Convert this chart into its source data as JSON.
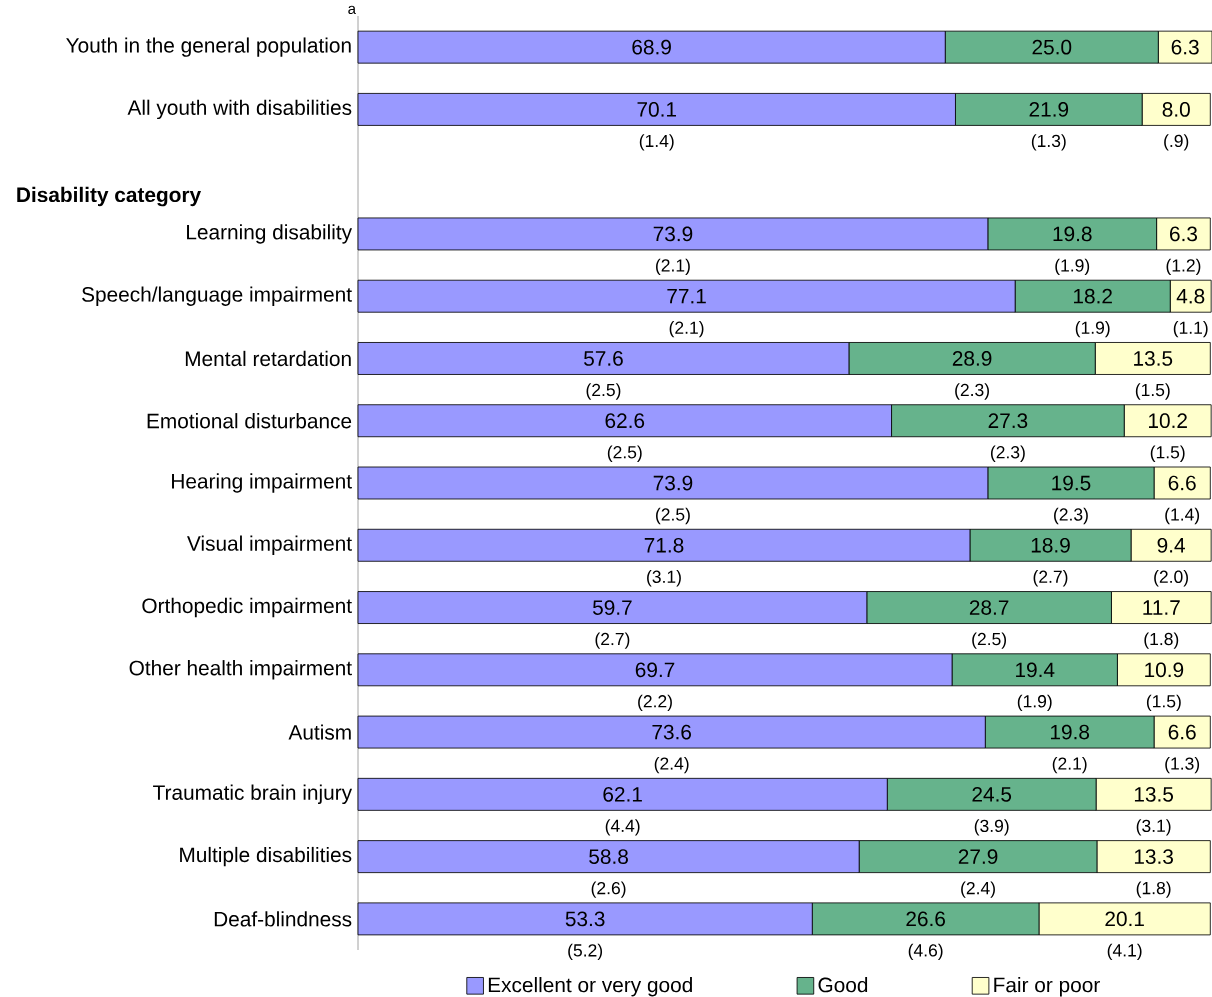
{
  "chart_data": {
    "type": "bar",
    "orientation": "horizontal",
    "stacked": true,
    "legend": "bottom",
    "tick_labels": "y",
    "categories": [
      "Youth in the general population",
      "All youth with disabilities",
      null,
      "Learning disability",
      "Speech/language impairment",
      "Mental retardation",
      "Emotional disturbance",
      "Hearing impairment",
      "Visual impairment",
      "Orthopedic impairment",
      "Other health impairment",
      "Autism",
      "Traumatic brain injury",
      "Multiple disabilities",
      "Deaf-blindness"
    ],
    "series": [
      {
        "name": "Excellent or very good",
        "color": "#9999ff",
        "values": [
          68.9,
          70.1,
          null,
          73.9,
          77.1,
          57.6,
          62.6,
          73.9,
          71.8,
          59.7,
          69.7,
          73.6,
          62.1,
          58.8,
          53.3
        ],
        "value_labels": [
          "68.9",
          "70.1",
          null,
          "73.9",
          "77.1",
          "57.6",
          "62.6",
          "73.9",
          "71.8",
          "59.7",
          "69.7",
          "73.6",
          "62.1",
          "58.8",
          "53.3"
        ]
      },
      {
        "name": "Good",
        "color": "#66b38c",
        "values": [
          25.0,
          21.9,
          null,
          19.8,
          18.2,
          28.9,
          27.3,
          19.5,
          18.9,
          28.7,
          19.4,
          19.8,
          24.5,
          27.9,
          26.6
        ],
        "value_labels": [
          "25.0",
          "21.9",
          null,
          "19.8",
          "18.2",
          "28.9",
          "27.3",
          "19.5",
          "18.9",
          "28.7",
          "19.4",
          "19.8",
          "24.5",
          "27.9",
          "26.6"
        ]
      },
      {
        "name": "Fair or poor",
        "color": "#ffffcc",
        "values": [
          6.3,
          8.0,
          null,
          6.3,
          4.8,
          13.5,
          10.2,
          6.6,
          9.4,
          11.7,
          10.9,
          6.6,
          13.5,
          13.3,
          20.1
        ],
        "value_labels": [
          "6.3",
          "8.0",
          null,
          "6.3",
          "4.8",
          "13.5",
          "10.2",
          "6.6",
          "9.4",
          "11.7",
          "10.9",
          "6.6",
          "13.5",
          "13.3",
          "20.1"
        ]
      }
    ],
    "annotations": [
      "a",
      "Disability category",
      "(1.4)",
      "(1.3)",
      "(.9)",
      "(2.1)",
      "(1.9)",
      "(1.2)",
      "(2.1)",
      "(1.9)",
      "(1.1)",
      "(2.5)",
      "(2.3)",
      "(1.5)",
      "(2.5)",
      "(2.3)",
      "(1.5)",
      "(2.5)",
      "(2.3)",
      "(1.4)",
      "(3.1)",
      "(2.7)",
      "(2.0)",
      "(2.7)",
      "(2.5)",
      "(1.8)",
      "(2.2)",
      "(1.9)",
      "(1.5)",
      "(2.4)",
      "(2.1)",
      "(1.3)",
      "(4.4)",
      "(3.9)",
      "(3.1)",
      "(2.6)",
      "(2.4)",
      "(1.8)",
      "(5.2)",
      "(4.6)",
      "(4.1)"
    ]
  }
}
